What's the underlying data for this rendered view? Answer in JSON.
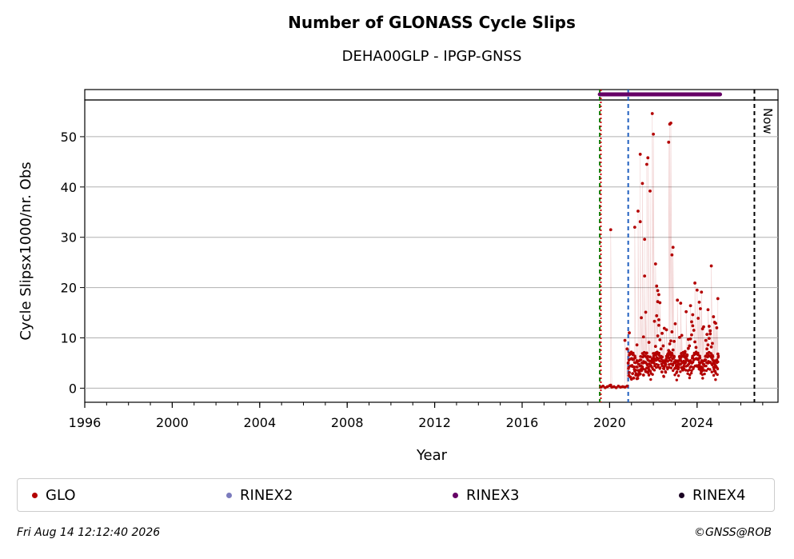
{
  "chart_data": {
    "type": "scatter",
    "title": "Number of GLONASS Cycle Slips",
    "subtitle": "DEHA00GLP - IPGP-GNSS",
    "xlabel": "Year",
    "ylabel": "Cycle Slipsx1000/nr. Obs",
    "xlim": [
      1996,
      2027.7
    ],
    "ylim": [
      -2.8,
      57.3
    ],
    "xticks": [
      "1996",
      "2000",
      "2004",
      "2008",
      "2012",
      "2016",
      "2020",
      "2024"
    ],
    "yticks": [
      "0",
      "10",
      "20",
      "30",
      "40",
      "50"
    ],
    "grid": "horizontal",
    "legend_position": "bottom",
    "now_label": "Now",
    "now_year": 2026.62,
    "vlines": [
      {
        "x": 2019.55,
        "color": "#008000",
        "style": "dashed"
      },
      {
        "x": 2019.6,
        "color": "#cc0000",
        "style": "dotted"
      },
      {
        "x": 2020.85,
        "color": "#1f5fbf",
        "style": "dashed"
      },
      {
        "x": 2026.62,
        "color": "#000000",
        "style": "dashed"
      }
    ],
    "series": [
      {
        "name": "GLO",
        "color": "#b30000",
        "x": [
          2019.6,
          2019.7,
          2019.8,
          2019.9,
          2020.0,
          2020.05,
          2020.1,
          2020.2,
          2020.3,
          2020.4,
          2020.5,
          2020.6,
          2020.7,
          2020.8,
          2020.85,
          2020.88,
          2020.9,
          2020.95,
          2021.0,
          2021.05,
          2021.1,
          2021.15,
          2021.2,
          2021.25,
          2021.3,
          2021.35,
          2021.4,
          2021.45,
          2021.5,
          2021.55,
          2021.6,
          2021.65,
          2021.7,
          2021.75,
          2021.8,
          2021.85,
          2021.9,
          2021.95,
          2022.0,
          2022.05,
          2022.1,
          2022.15,
          2022.2,
          2022.25,
          2022.3,
          2022.35,
          2022.4,
          2022.45,
          2022.5,
          2022.55,
          2022.6,
          2022.65,
          2022.7,
          2022.75,
          2022.8,
          2022.85,
          2022.9,
          2022.95,
          2023.0,
          2023.05,
          2023.1,
          2023.15,
          2023.2,
          2023.25,
          2023.3,
          2023.35,
          2023.4,
          2023.45,
          2023.5,
          2023.55,
          2023.6,
          2023.65,
          2023.7,
          2023.75,
          2023.8,
          2023.85,
          2023.9,
          2023.95,
          2024.0,
          2024.05,
          2024.1,
          2024.15,
          2024.2,
          2024.25,
          2024.3,
          2024.35,
          2024.4,
          2024.45,
          2024.5,
          2024.55,
          2024.6,
          2024.65,
          2024.7,
          2024.75,
          2024.8,
          2024.85,
          2024.9,
          2024.95,
          2020.05,
          2020.7,
          2020.8,
          2020.9,
          2021.15,
          2021.3,
          2021.4,
          2021.5,
          2021.6,
          2021.7,
          2021.75,
          2021.85,
          2021.95,
          2022.0,
          2022.1,
          2022.15,
          2022.2,
          2022.25,
          2022.7,
          2022.75,
          2022.8,
          2022.85,
          2022.9,
          2023.1,
          2023.25,
          2023.5,
          2023.9,
          2024.0,
          2024.1,
          2024.5,
          2024.65,
          2024.75,
          2024.85,
          2024.95,
          2021.4,
          2021.6,
          2022.3,
          2023.7,
          2024.2,
          2024.55,
          2021.45,
          2021.65,
          2022.05,
          2022.4,
          2022.6,
          2023.0,
          2023.3,
          2023.6,
          2023.8,
          2024.05,
          2024.3,
          2024.6,
          2024.8,
          2021.25,
          2021.55,
          2021.8,
          2022.2,
          2022.45,
          2023.45,
          2024.15,
          2024.4,
          2024.9,
          2021.7,
          2022.15,
          2022.25,
          2022.5,
          2022.95,
          2023.2,
          2023.75,
          2024.25,
          2024.45,
          2024.7
        ],
        "y": [
          0.2,
          0.4,
          0.1,
          0.3,
          0.5,
          0.6,
          0.2,
          0.3,
          0.1,
          0.4,
          0.2,
          0.3,
          0.2,
          0.4,
          5.0,
          2.5,
          3.1,
          2.2,
          1.8,
          2.9,
          2.0,
          3.4,
          2.6,
          1.9,
          2.5,
          3.2,
          2.8,
          3.8,
          4.2,
          2.6,
          5.1,
          3.3,
          4.0,
          3.1,
          3.6,
          6.2,
          4.4,
          5.8,
          6.9,
          5.5,
          8.3,
          7.1,
          10.4,
          12.5,
          9.6,
          7.8,
          6.2,
          5.1,
          4.3,
          4.9,
          5.6,
          6.7,
          7.5,
          8.8,
          9.4,
          11.2,
          7.6,
          6.3,
          5.2,
          4.5,
          3.9,
          4.2,
          4.8,
          5.5,
          4.1,
          3.6,
          4.4,
          5.0,
          5.8,
          6.6,
          7.9,
          8.4,
          9.8,
          10.6,
          12.4,
          11.5,
          9.2,
          8.1,
          6.9,
          5.8,
          4.6,
          3.9,
          3.3,
          4.0,
          4.7,
          5.5,
          6.4,
          7.8,
          8.6,
          9.9,
          10.8,
          8.2,
          6.5,
          5.1,
          3.4,
          4.2,
          5.6,
          6.8,
          31.5,
          9.5,
          7.8,
          11.0,
          32.0,
          35.2,
          46.5,
          40.7,
          29.6,
          44.5,
          45.8,
          39.2,
          54.6,
          50.5,
          24.7,
          20.3,
          19.4,
          18.6,
          48.9,
          52.5,
          52.7,
          26.5,
          28.0,
          17.5,
          16.9,
          15.2,
          20.9,
          19.5,
          17.1,
          15.6,
          24.3,
          14.2,
          12.9,
          17.8,
          33.1,
          22.3,
          17.0,
          16.4,
          19.1,
          12.3,
          14.0,
          15.1,
          13.3,
          10.9,
          11.6,
          12.8,
          10.5,
          9.7,
          14.6,
          13.9,
          12.2,
          11.4,
          13.1,
          8.6,
          10.2,
          9.1,
          17.2,
          8.4,
          7.3,
          15.8,
          9.5,
          12.0,
          7.0,
          14.4,
          13.6,
          11.9,
          9.3,
          10.1,
          13.2,
          11.8,
          10.7,
          8.9
        ],
        "marker": "dot"
      },
      {
        "name": "RINEX2",
        "color": "#7b7bbd",
        "x": [],
        "y": [],
        "marker": "dot"
      },
      {
        "name": "RINEX3",
        "color": "#660066",
        "x_range": [
          2019.55,
          2025.05
        ],
        "y_level": 58.5,
        "marker": "dot"
      },
      {
        "name": "RINEX4",
        "color": "#1a0022",
        "x": [],
        "y": [],
        "marker": "dot"
      }
    ]
  },
  "footer": {
    "timestamp": "Fri Aug 14 12:12:40 2026",
    "credit": "©GNSS@ROB"
  }
}
